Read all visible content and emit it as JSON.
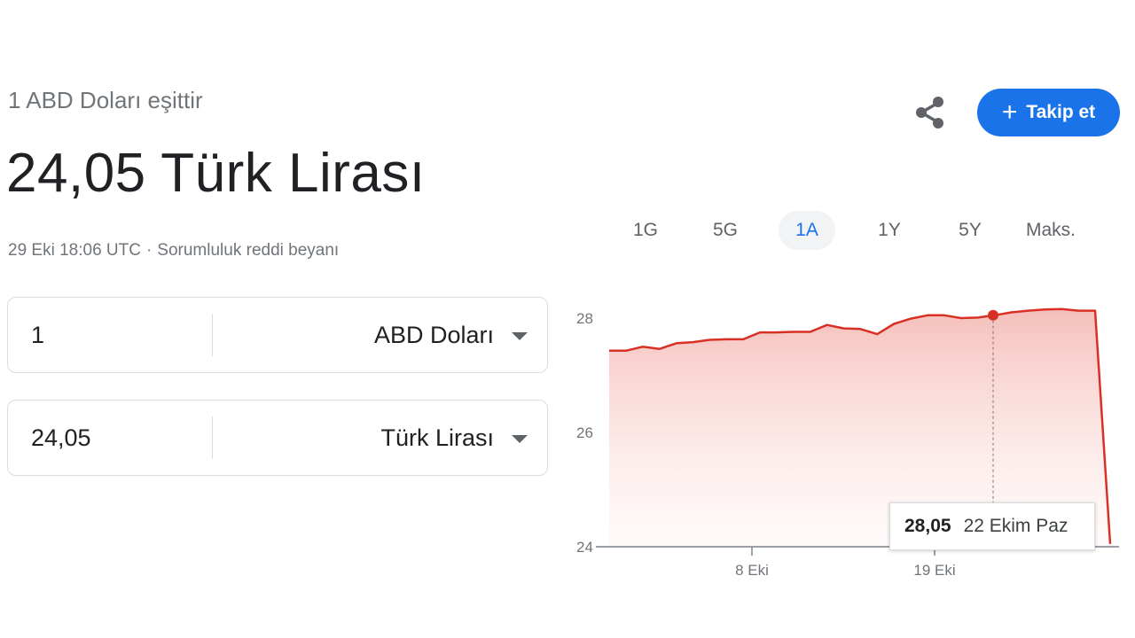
{
  "header": {
    "subtitle": "1 ABD Doları eşittir",
    "value": "24,05 Türk Lirası",
    "timestamp": "29 Eki 18:06 UTC",
    "separator": "·",
    "disclaimer": "Sorumluluk reddi beyanı"
  },
  "actions": {
    "share_icon": "share-icon",
    "follow_label": "Takip et",
    "follow_icon": "+"
  },
  "converter": {
    "from": {
      "amount": "1",
      "currency": "ABD Doları"
    },
    "to": {
      "amount": "24,05",
      "currency": "Türk Lirası"
    }
  },
  "range_tabs": [
    {
      "label": "1G",
      "active": false
    },
    {
      "label": "5G",
      "active": false
    },
    {
      "label": "1A",
      "active": true
    },
    {
      "label": "1Y",
      "active": false
    },
    {
      "label": "5Y",
      "active": false
    },
    {
      "label": "Maks.",
      "active": false
    }
  ],
  "chart_data": {
    "type": "area",
    "y_ticks": [
      "28",
      "26",
      "24"
    ],
    "x_ticks": [
      "8 Eki",
      "19 Eki"
    ],
    "ylim": [
      24,
      28.6
    ],
    "line_color": "#d93025",
    "series": [
      {
        "values": [
          27.43,
          27.43,
          27.5,
          27.46,
          27.56,
          27.58,
          27.62,
          27.63,
          27.63,
          27.75,
          27.75,
          27.76,
          27.76,
          27.88,
          27.82,
          27.81,
          27.72,
          27.9,
          27.99,
          28.05,
          28.05,
          28.0,
          28.01,
          28.05,
          28.1,
          28.13,
          28.15,
          28.16,
          28.13,
          28.13,
          24.05
        ]
      }
    ],
    "tooltip": {
      "value": "28,05",
      "date": "22 Ekim Paz"
    }
  }
}
